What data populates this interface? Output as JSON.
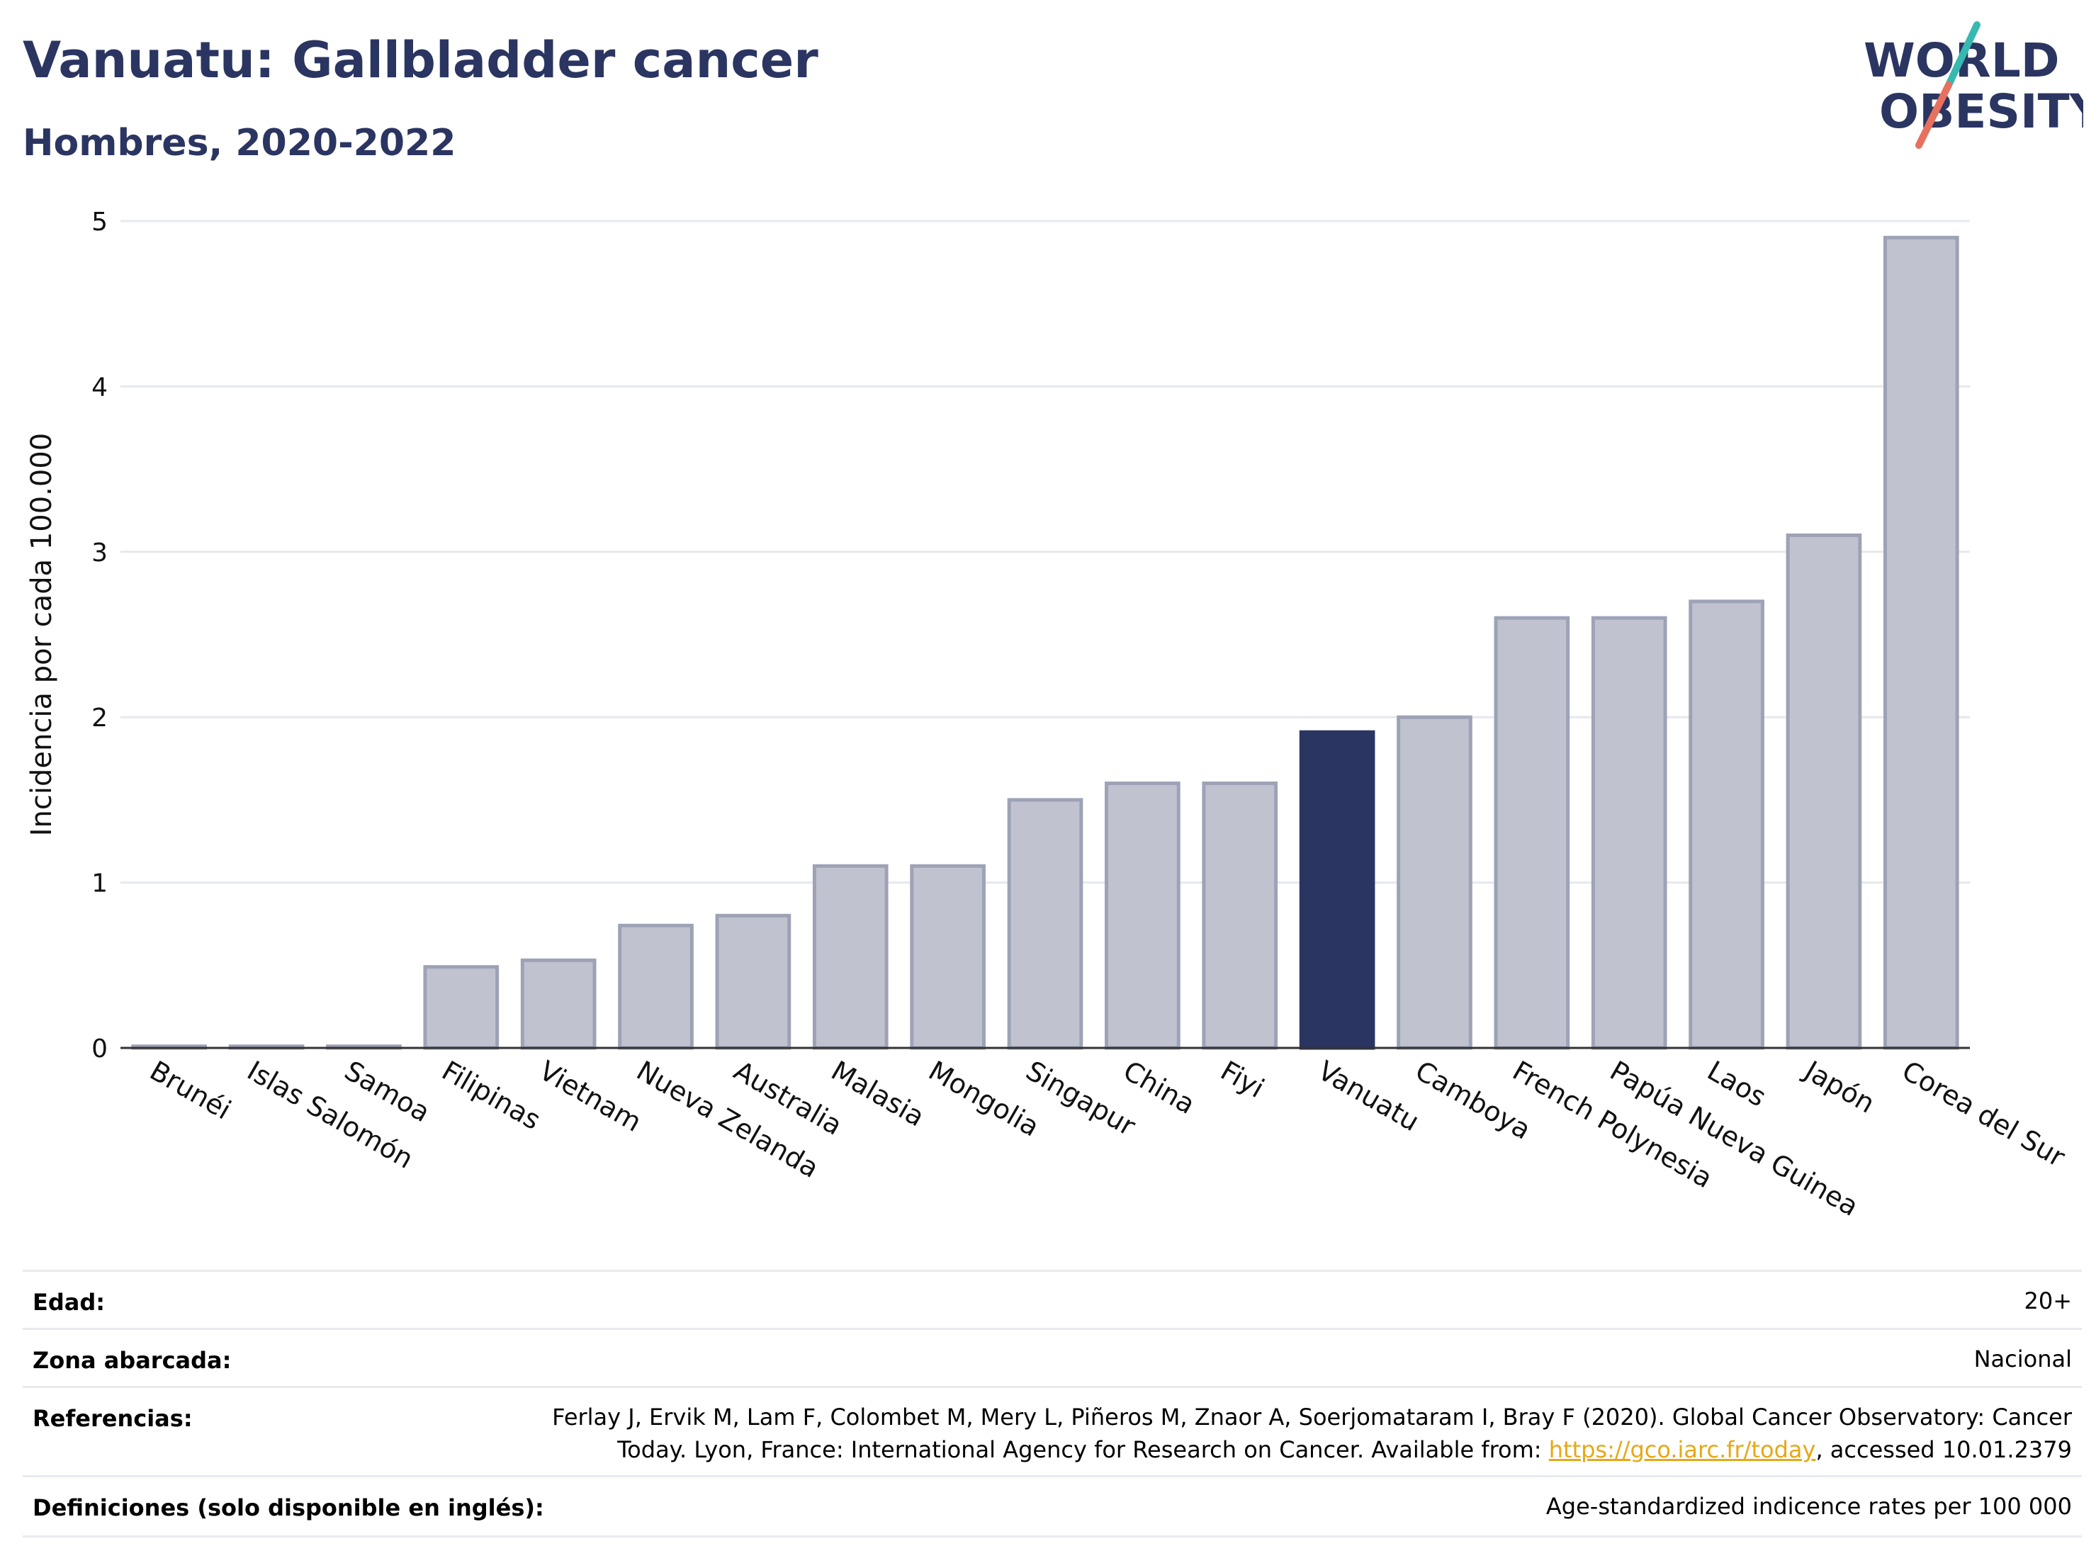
{
  "header": {
    "title": "Vanuatu: Gallbladder cancer",
    "subtitle": "Hombres, 2020-2022",
    "logo_line1": "WORLD",
    "logo_line2": "OBESITY"
  },
  "chart_data": {
    "type": "bar",
    "title": "Vanuatu: Gallbladder cancer",
    "subtitle": "Hombres, 2020-2022",
    "ylabel": "Incidencia por cada 100.000",
    "xlabel": "",
    "ylim": [
      0,
      5
    ],
    "yticks": [
      0,
      1,
      2,
      3,
      4,
      5
    ],
    "grid": true,
    "highlight": "Vanuatu",
    "categories": [
      "Brunéi",
      "Islas Salomón",
      "Samoa",
      "Filipinas",
      "Vietnam",
      "Nueva Zelanda",
      "Australia",
      "Malasia",
      "Mongolia",
      "Singapur",
      "China",
      "Fiyi",
      "Vanuatu",
      "Camboya",
      "French Polynesia",
      "Papúa Nueva Guinea",
      "Laos",
      "Japón",
      "Corea del Sur"
    ],
    "values": [
      0.01,
      0.01,
      0.01,
      0.49,
      0.53,
      0.74,
      0.8,
      1.1,
      1.1,
      1.5,
      1.6,
      1.6,
      1.91,
      2.0,
      2.6,
      2.6,
      2.7,
      3.1,
      4.9
    ],
    "colors": {
      "bar_fill": "#c0c3cf",
      "bar_stroke": "#9da2b6",
      "highlight_fill": "#2b3561",
      "axis": "#333333",
      "grid": "#e6e8ee"
    }
  },
  "info": {
    "age_label": "Edad:",
    "age_value": "20+",
    "area_label": "Zona abarcada:",
    "area_value": "Nacional",
    "refs_label": "Referencias:",
    "refs_line1": "Ferlay J, Ervik M, Lam F, Colombet M, Mery L, Piñeros M, Znaor A, Soerjomataram I, Bray F (2020). Global Cancer Observatory: Cancer",
    "refs_line2_prefix": "Today. Lyon, France: International Agency for Research on Cancer. Available from: ",
    "refs_link": "https://gco.iarc.fr/today",
    "refs_line2_suffix": ", accessed 10.01.2379",
    "defs_label": "Definiciones (solo disponible en inglés):",
    "defs_value": "Age-standardized indicence rates per 100 000"
  }
}
